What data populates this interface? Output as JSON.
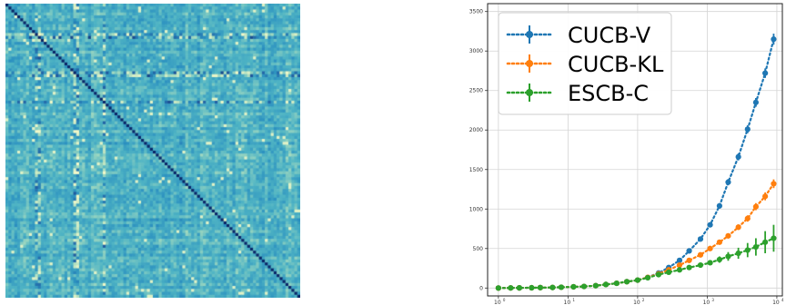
{
  "chart_data": [
    {
      "type": "heatmap",
      "description_of_content": "",
      "matrix_size": 100,
      "colormap": [
        "#f4f9c8",
        "#a8dcbf",
        "#4fb4c4",
        "#2b90c0",
        "#215fa3",
        "#0a2668"
      ],
      "diagonal_value": 1.0,
      "highlight_rows": [
        10,
        11,
        23,
        24,
        33
      ],
      "highlight_cols": [
        10,
        11,
        23,
        24,
        33
      ]
    },
    {
      "type": "line",
      "xscale": "log",
      "xlim": [
        0.7,
        12000
      ],
      "ylim": [
        -100,
        3600
      ],
      "grid": true,
      "legend_position": "top-left",
      "xticks": [
        {
          "value": 1,
          "base": "10",
          "exp": "0"
        },
        {
          "value": 10,
          "base": "10",
          "exp": "1"
        },
        {
          "value": 100,
          "base": "10",
          "exp": "2"
        },
        {
          "value": 1000,
          "base": "10",
          "exp": "3"
        },
        {
          "value": 10000,
          "base": "10",
          "exp": "4"
        }
      ],
      "yticks": [
        0,
        500,
        1000,
        1500,
        2000,
        2500,
        3000,
        3500
      ],
      "x": [
        1,
        1.5,
        2,
        3,
        4,
        6,
        8,
        12,
        17,
        25,
        35,
        50,
        70,
        100,
        140,
        200,
        280,
        400,
        550,
        800,
        1100,
        1500,
        2000,
        2800,
        3800,
        5000,
        6800,
        9000
      ],
      "series": [
        {
          "name": "CUCB-V",
          "color": "#1f77b4",
          "values": [
            0,
            1,
            2,
            3,
            5,
            7,
            10,
            15,
            20,
            30,
            45,
            60,
            80,
            100,
            135,
            190,
            260,
            350,
            470,
            620,
            800,
            1040,
            1340,
            1660,
            2010,
            2350,
            2720,
            3150
          ],
          "errors": [
            5,
            5,
            5,
            5,
            5,
            5,
            5,
            5,
            5,
            5,
            5,
            5,
            5,
            8,
            10,
            12,
            15,
            18,
            20,
            25,
            30,
            35,
            40,
            45,
            50,
            55,
            60,
            70
          ]
        },
        {
          "name": "CUCB-KL",
          "color": "#ff7f0e",
          "values": [
            0,
            1,
            2,
            3,
            5,
            7,
            10,
            15,
            20,
            30,
            45,
            60,
            80,
            100,
            135,
            180,
            230,
            290,
            350,
            420,
            500,
            580,
            660,
            770,
            880,
            1030,
            1160,
            1320
          ],
          "errors": [
            5,
            5,
            5,
            5,
            5,
            5,
            5,
            5,
            5,
            5,
            5,
            5,
            5,
            8,
            10,
            12,
            15,
            15,
            18,
            20,
            25,
            25,
            30,
            35,
            40,
            45,
            50,
            55
          ]
        },
        {
          "name": "ESCB-C",
          "color": "#2ca02c",
          "values": [
            0,
            1,
            2,
            3,
            5,
            7,
            10,
            15,
            20,
            30,
            45,
            60,
            80,
            100,
            130,
            170,
            200,
            230,
            260,
            290,
            320,
            360,
            400,
            440,
            480,
            520,
            580,
            630
          ],
          "errors": [
            5,
            5,
            5,
            5,
            5,
            5,
            5,
            5,
            5,
            5,
            5,
            5,
            5,
            8,
            10,
            12,
            15,
            18,
            20,
            25,
            30,
            40,
            55,
            70,
            90,
            110,
            140,
            170
          ]
        }
      ]
    }
  ]
}
